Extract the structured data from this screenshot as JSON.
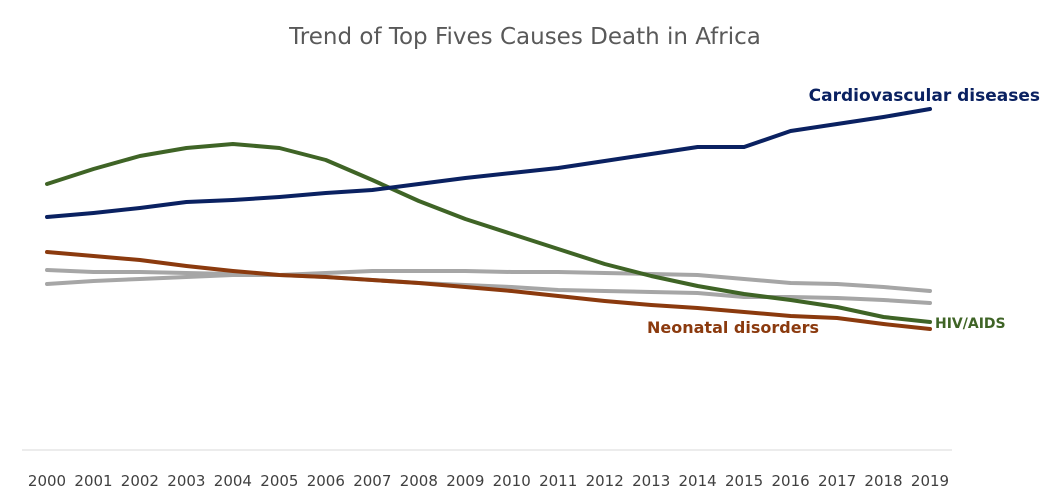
{
  "chart_data": {
    "type": "line",
    "title": "Trend of Top Fives Causes Death in Africa",
    "xlabel": "",
    "ylabel": "",
    "y_axis_visible": false,
    "grid": false,
    "legend": "none",
    "categories": [
      "2000",
      "2001",
      "2002",
      "2003",
      "2004",
      "2005",
      "2006",
      "2007",
      "2008",
      "2009",
      "2010",
      "2011",
      "2012",
      "2013",
      "2014",
      "2015",
      "2016",
      "2017",
      "2018",
      "2019"
    ],
    "series": [
      {
        "name": "Cardiovascular diseases",
        "label_shown": true,
        "color": "#0a2161",
        "values": [
          217,
          213,
          208,
          202,
          200,
          197,
          193,
          190,
          184,
          178,
          173,
          168,
          161,
          154,
          147,
          147,
          131,
          124,
          117,
          109
        ]
      },
      {
        "name": "HIV/AIDS",
        "label_shown": true,
        "color": "#3f6426",
        "values": [
          184,
          169,
          156,
          148,
          144,
          148,
          160,
          180,
          201,
          219,
          234,
          249,
          264,
          276,
          286,
          294,
          300,
          307,
          317,
          322
        ]
      },
      {
        "name": "Neonatal disorders",
        "label_shown": true,
        "color": "#8b3a0e",
        "values": [
          252,
          256,
          260,
          266,
          271,
          275,
          277,
          280,
          283,
          287,
          291,
          296,
          301,
          305,
          308,
          312,
          316,
          318,
          324,
          329
        ]
      },
      {
        "name": "",
        "label_shown": false,
        "color": "#a6a6a6",
        "values": [
          270,
          272,
          272,
          273,
          274,
          275,
          273,
          271,
          271,
          271,
          272,
          272,
          273,
          274,
          275,
          279,
          283,
          284,
          287,
          291
        ]
      },
      {
        "name": "",
        "label_shown": false,
        "color": "#a6a6a6",
        "values": [
          284,
          281,
          279,
          277,
          275,
          275,
          277,
          280,
          283,
          285,
          287,
          290,
          291,
          292,
          293,
          297,
          297,
          298,
          300,
          303
        ]
      }
    ]
  }
}
